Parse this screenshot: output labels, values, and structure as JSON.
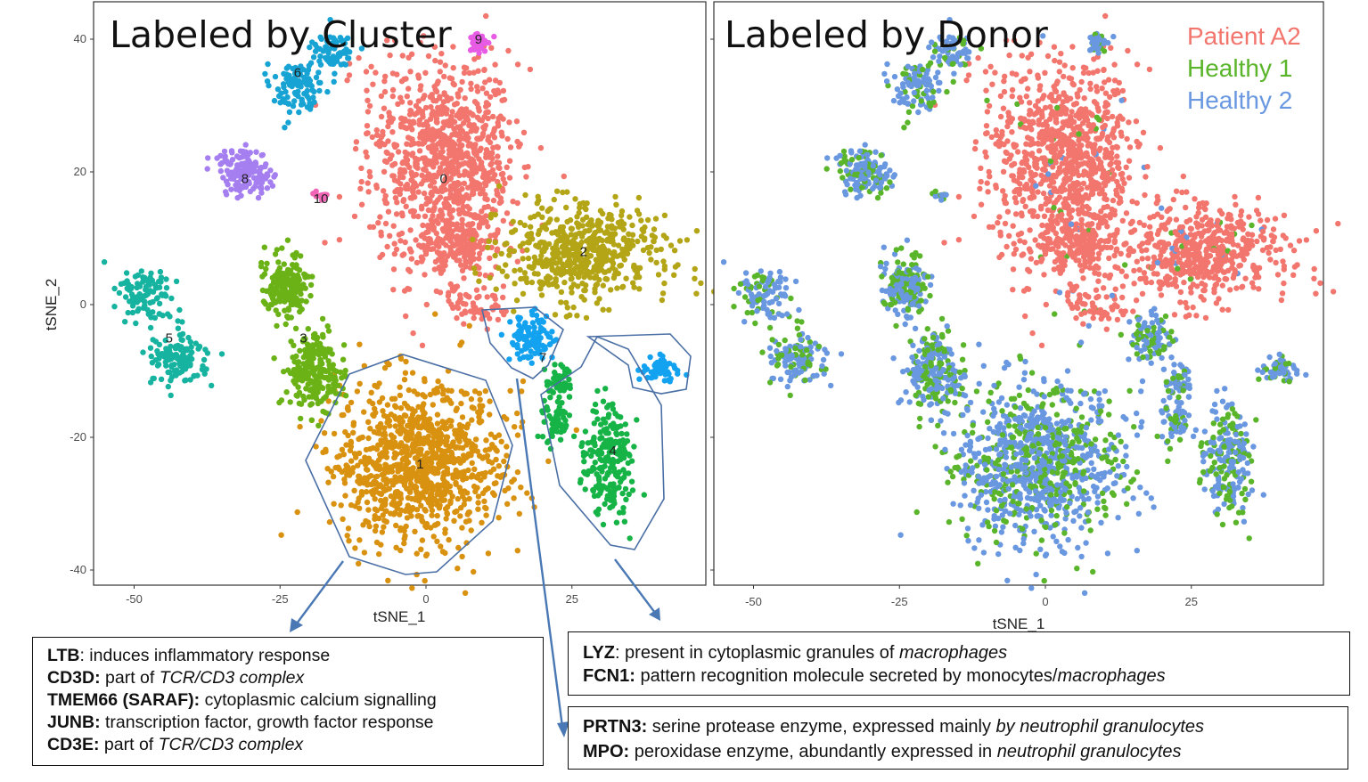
{
  "chart_data": [
    {
      "type": "scatter",
      "title": "Labeled by Cluster",
      "xlabel": "tSNE_1",
      "ylabel": "tSNE_2",
      "xlim": [
        -60,
        47
      ],
      "ylim": [
        -42,
        45
      ],
      "xticks": [
        -50,
        -25,
        0,
        25
      ],
      "yticks": [
        -40,
        -20,
        0,
        20,
        40
      ],
      "grid": false,
      "clusters": [
        {
          "label": "0",
          "x": 3,
          "y": 19,
          "color": "#F2766E"
        },
        {
          "label": "1",
          "x": -1,
          "y": -24,
          "color": "#D99110"
        },
        {
          "label": "2",
          "x": 27,
          "y": 8,
          "color": "#B3A516"
        },
        {
          "label": "3",
          "x": -21,
          "y": -5,
          "color": "#6BB217"
        },
        {
          "label": "4",
          "x": 32,
          "y": -22,
          "color": "#16B346"
        },
        {
          "label": "5",
          "x": -44,
          "y": -5,
          "color": "#16B3A0"
        },
        {
          "label": "6",
          "x": -22,
          "y": 35,
          "color": "#17A3D3"
        },
        {
          "label": "7",
          "x": 20,
          "y": -8,
          "color": "#12A2F0"
        },
        {
          "label": "8",
          "x": -31,
          "y": 19,
          "color": "#A57EF0"
        },
        {
          "label": "9",
          "x": 9,
          "y": 40,
          "color": "#E75BE5"
        },
        {
          "label": "10",
          "x": -18,
          "y": 16,
          "color": "#F065B6"
        }
      ]
    },
    {
      "type": "scatter",
      "title": "Labeled by Donor",
      "xlabel": "tSNE_1",
      "ylabel": "",
      "xlim": [
        -60,
        47
      ],
      "ylim": [
        -42,
        45
      ],
      "xticks": [
        -50,
        -25,
        0,
        25
      ],
      "grid": false,
      "legend": "top-right",
      "series": [
        {
          "name": "Patient A2",
          "color": "#F2766E"
        },
        {
          "name": "Healthy 1",
          "color": "#5AB52B"
        },
        {
          "name": "Healthy 2",
          "color": "#6A98E0"
        }
      ]
    }
  ],
  "annotations": {
    "box_cluster1": [
      {
        "bold": "LTB",
        "text": ": induces inflammatory response",
        "italic": ""
      },
      {
        "bold": "CD3D:",
        "text": " part of ",
        "italic": "TCR/CD3 complex"
      },
      {
        "bold": "TMEM66 (SARAF):",
        "text": " cytoplasmic calcium signalling",
        "italic": ""
      },
      {
        "bold": "JUNB:",
        "text": " transcription factor, growth factor response",
        "italic": ""
      },
      {
        "bold": "CD3E:",
        "text": " part of ",
        "italic": "TCR/CD3 complex"
      }
    ],
    "box_cluster4": [
      {
        "bold": "LYZ",
        "text": ": present in cytoplasmic granules of ",
        "italic": "macrophages"
      },
      {
        "bold": "FCN1:",
        "text": " pattern recognition molecule secreted by monocytes/",
        "italic": "macrophages"
      }
    ],
    "box_cluster7": [
      {
        "bold": "PRTN3:",
        "text": " serine protease enzyme, expressed mainly ",
        "italic": "by neutrophil granulocytes"
      },
      {
        "bold": "MPO:",
        "text": " peroxidase enzyme, abundantly expressed in ",
        "italic": "neutrophil granulocytes"
      }
    ]
  }
}
